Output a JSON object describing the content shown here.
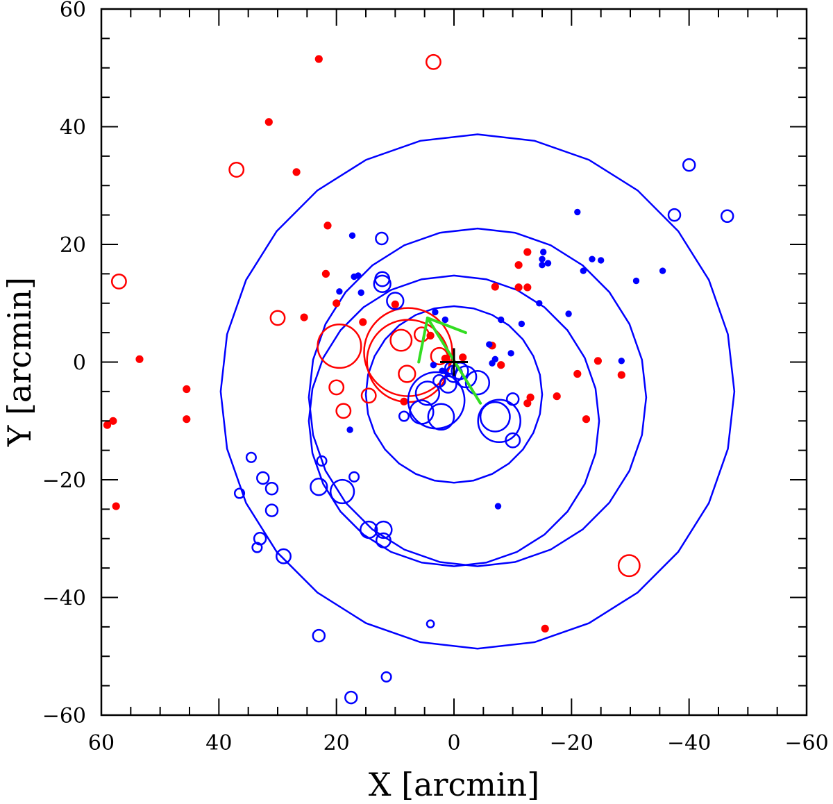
{
  "chart_data": {
    "type": "scatter",
    "title": "",
    "xlabel": "X [arcmin]",
    "ylabel": "Y [arcmin]",
    "xlim": [
      60,
      -60
    ],
    "ylim": [
      -60,
      60
    ],
    "x_ticks": [
      60,
      40,
      20,
      0,
      -20,
      -40,
      -60
    ],
    "y_ticks": [
      -60,
      -40,
      -20,
      0,
      20,
      40,
      60
    ],
    "x_tick_labels": [
      "60",
      "40",
      "20",
      "0",
      "−20",
      "−40",
      "−60"
    ],
    "y_tick_labels": [
      "−60",
      "−40",
      "−20",
      "0",
      "20",
      "40",
      "60"
    ],
    "grid": false,
    "center_marker": {
      "x": 0,
      "y": 0,
      "color": "#000000"
    },
    "contours": {
      "color": "#0000ff",
      "rings": [
        {
          "cx": 0,
          "cy": -5.5,
          "r": 15.0
        },
        {
          "cx": 0,
          "cy": -10,
          "r": 24.7
        },
        {
          "cx": -4,
          "cy": -6,
          "r": 28.7
        },
        {
          "cx": -4,
          "cy": -5,
          "r": 43.7
        }
      ]
    },
    "arrows": {
      "color": "#33dd22",
      "lines": [
        {
          "x1": 6,
          "y1": 0,
          "x2": 4.5,
          "y2": 7.5
        },
        {
          "x1": 4.5,
          "y1": 7.5,
          "x2": -2,
          "y2": 5
        },
        {
          "x1": 4.5,
          "y1": 7.5,
          "x2": -4.5,
          "y2": -7
        }
      ]
    },
    "series": [
      {
        "color": "#ff0000",
        "points": [
          [
            23,
            51.5,
            0.6,
            1
          ],
          [
            3.5,
            51,
            1.2,
            0
          ],
          [
            31.5,
            40.8,
            0.6,
            1
          ],
          [
            37,
            32.7,
            1.2,
            0
          ],
          [
            26.8,
            32.3,
            0.6,
            1
          ],
          [
            21.5,
            23.2,
            0.6,
            1
          ],
          [
            57,
            13.7,
            1.2,
            0
          ],
          [
            21.8,
            15,
            0.6,
            1
          ],
          [
            30,
            7.5,
            1.2,
            0
          ],
          [
            25.5,
            7.6,
            0.6,
            1
          ],
          [
            20,
            10,
            0.6,
            1
          ],
          [
            15.5,
            6.8,
            0.6,
            1
          ],
          [
            10,
            9.8,
            0.6,
            1
          ],
          [
            19.5,
            2.7,
            3.7,
            0
          ],
          [
            53.5,
            0.5,
            0.6,
            1
          ],
          [
            45.5,
            -4.6,
            0.6,
            1
          ],
          [
            45.5,
            -9.7,
            0.6,
            1
          ],
          [
            58,
            -10,
            0.6,
            1
          ],
          [
            59,
            -10.7,
            0.6,
            1
          ],
          [
            57.5,
            -24.5,
            0.6,
            1
          ],
          [
            20,
            -4.3,
            1.2,
            0
          ],
          [
            18.8,
            -8.3,
            1.2,
            0
          ],
          [
            14.5,
            -5.7,
            1.2,
            0
          ],
          [
            8.5,
            -6.7,
            0.6,
            1
          ],
          [
            7.8,
            0.2,
            7.0,
            0
          ],
          [
            7.8,
            1.7,
            7.5,
            0
          ],
          [
            9,
            3.7,
            1.8,
            0
          ],
          [
            8,
            -2,
            1.4,
            0
          ],
          [
            5.5,
            4.7,
            1.2,
            0
          ],
          [
            4,
            4.5,
            0.6,
            1
          ],
          [
            2.5,
            1,
            1.4,
            0
          ],
          [
            1.5,
            0.6,
            0.6,
            1
          ],
          [
            -1.5,
            0.8,
            0.6,
            1
          ],
          [
            -6.5,
            2.8,
            0.6,
            1
          ],
          [
            -7,
            12.8,
            0.6,
            1
          ],
          [
            -11,
            16.5,
            0.6,
            1
          ],
          [
            -12.5,
            18.7,
            0.6,
            1
          ],
          [
            -11,
            12.7,
            0.6,
            1
          ],
          [
            -12.5,
            12.7,
            0.6,
            1
          ],
          [
            -8,
            -0.5,
            0.6,
            1
          ],
          [
            -12.5,
            -7,
            0.6,
            1
          ],
          [
            -13,
            -6,
            0.6,
            1
          ],
          [
            -17.5,
            -5.8,
            0.6,
            1
          ],
          [
            -21,
            -2,
            0.6,
            1
          ],
          [
            -22.5,
            -9.7,
            0.6,
            1
          ],
          [
            -24.5,
            0.2,
            0.6,
            1
          ],
          [
            -28.5,
            -2.2,
            0.6,
            1
          ],
          [
            -15.5,
            -45.3,
            0.6,
            1
          ],
          [
            -29.8,
            -34.6,
            1.8,
            0
          ]
        ]
      },
      {
        "color": "#0000ff",
        "points": [
          [
            17.3,
            21.5,
            0.5,
            1
          ],
          [
            12.3,
            21,
            1.0,
            0
          ],
          [
            17,
            14.5,
            0.5,
            1
          ],
          [
            16.3,
            14.7,
            0.5,
            1
          ],
          [
            12.2,
            14.1,
            1.2,
            0
          ],
          [
            12.2,
            13.3,
            1.4,
            0
          ],
          [
            15.8,
            11.8,
            0.5,
            1
          ],
          [
            19.5,
            12,
            0.5,
            1
          ],
          [
            10,
            10.4,
            1.4,
            0
          ],
          [
            3.2,
            8.5,
            0.5,
            1
          ],
          [
            1.5,
            7.2,
            0.5,
            1
          ],
          [
            -8,
            7.2,
            0.5,
            1
          ],
          [
            -11.5,
            6.5,
            0.5,
            1
          ],
          [
            -14.5,
            10,
            0.5,
            1
          ],
          [
            -6,
            3,
            0.5,
            1
          ],
          [
            -9.7,
            1.5,
            0.5,
            1
          ],
          [
            -7,
            0.5,
            0.5,
            1
          ],
          [
            -6.5,
            -0.2,
            0.5,
            1
          ],
          [
            -15,
            16.5,
            0.5,
            1
          ],
          [
            -15.2,
            18.7,
            0.5,
            1
          ],
          [
            -15,
            17.5,
            0.5,
            1
          ],
          [
            -16,
            16.8,
            0.5,
            1
          ],
          [
            -23.5,
            17.5,
            0.5,
            1
          ],
          [
            -25,
            17.3,
            0.5,
            1
          ],
          [
            -22,
            15.5,
            0.5,
            1
          ],
          [
            -21,
            25.5,
            0.5,
            1
          ],
          [
            -19.5,
            8.2,
            0.5,
            1
          ],
          [
            -31,
            13.8,
            0.5,
            1
          ],
          [
            -35.5,
            15.5,
            0.5,
            1
          ],
          [
            -37.5,
            25,
            1.0,
            0
          ],
          [
            -40,
            33.5,
            1.0,
            0
          ],
          [
            -46.5,
            24.8,
            1.0,
            0
          ],
          [
            -28.5,
            0.2,
            0.5,
            1
          ],
          [
            -10,
            -6.3,
            1.0,
            0
          ],
          [
            -10,
            -13.3,
            1.2,
            0
          ],
          [
            -7,
            -9.3,
            2.5,
            0
          ],
          [
            -7.7,
            -10,
            3.6,
            0
          ],
          [
            -4,
            -3.5,
            2.0,
            0
          ],
          [
            -2,
            -2.5,
            1.8,
            0
          ],
          [
            -1,
            -1.5,
            1.4,
            0
          ],
          [
            0,
            -2,
            1.4,
            0
          ],
          [
            0.5,
            -1,
            1.0,
            0
          ],
          [
            1,
            -3.8,
            1.4,
            0
          ],
          [
            3,
            -6.5,
            4.8,
            0
          ],
          [
            4.5,
            -5.3,
            2.0,
            0
          ],
          [
            5.5,
            -8.5,
            2.0,
            0
          ],
          [
            2.2,
            -9.3,
            2.2,
            0
          ],
          [
            8.5,
            -9.2,
            0.8,
            0
          ],
          [
            2.5,
            -3.2,
            1.0,
            0
          ],
          [
            2,
            -1.5,
            0.5,
            1
          ],
          [
            3.5,
            -0.5,
            0.5,
            1
          ],
          [
            17.7,
            -11.5,
            0.5,
            1
          ],
          [
            -7.5,
            -24.5,
            0.5,
            1
          ],
          [
            34.5,
            -16.2,
            0.8,
            0
          ],
          [
            36.5,
            -22.3,
            0.8,
            0
          ],
          [
            32.5,
            -19.7,
            1.0,
            0
          ],
          [
            31,
            -21.5,
            1.0,
            0
          ],
          [
            22.5,
            -16.8,
            0.8,
            0
          ],
          [
            17,
            -19.5,
            0.8,
            0
          ],
          [
            23,
            -21.2,
            1.4,
            0
          ],
          [
            19,
            -22,
            2.0,
            0
          ],
          [
            31,
            -25.2,
            1.0,
            0
          ],
          [
            14.5,
            -28.5,
            1.4,
            0
          ],
          [
            12,
            -28.5,
            1.4,
            0
          ],
          [
            12,
            -30.3,
            1.2,
            0
          ],
          [
            33,
            -30,
            1.0,
            0
          ],
          [
            33.5,
            -31.5,
            0.8,
            0
          ],
          [
            29,
            -33,
            1.2,
            0
          ],
          [
            23,
            -46.5,
            1.0,
            0
          ],
          [
            4,
            -44.5,
            0.6,
            0
          ],
          [
            11.5,
            -53.5,
            0.8,
            0
          ],
          [
            17.5,
            -57,
            1.0,
            0
          ]
        ]
      }
    ]
  }
}
